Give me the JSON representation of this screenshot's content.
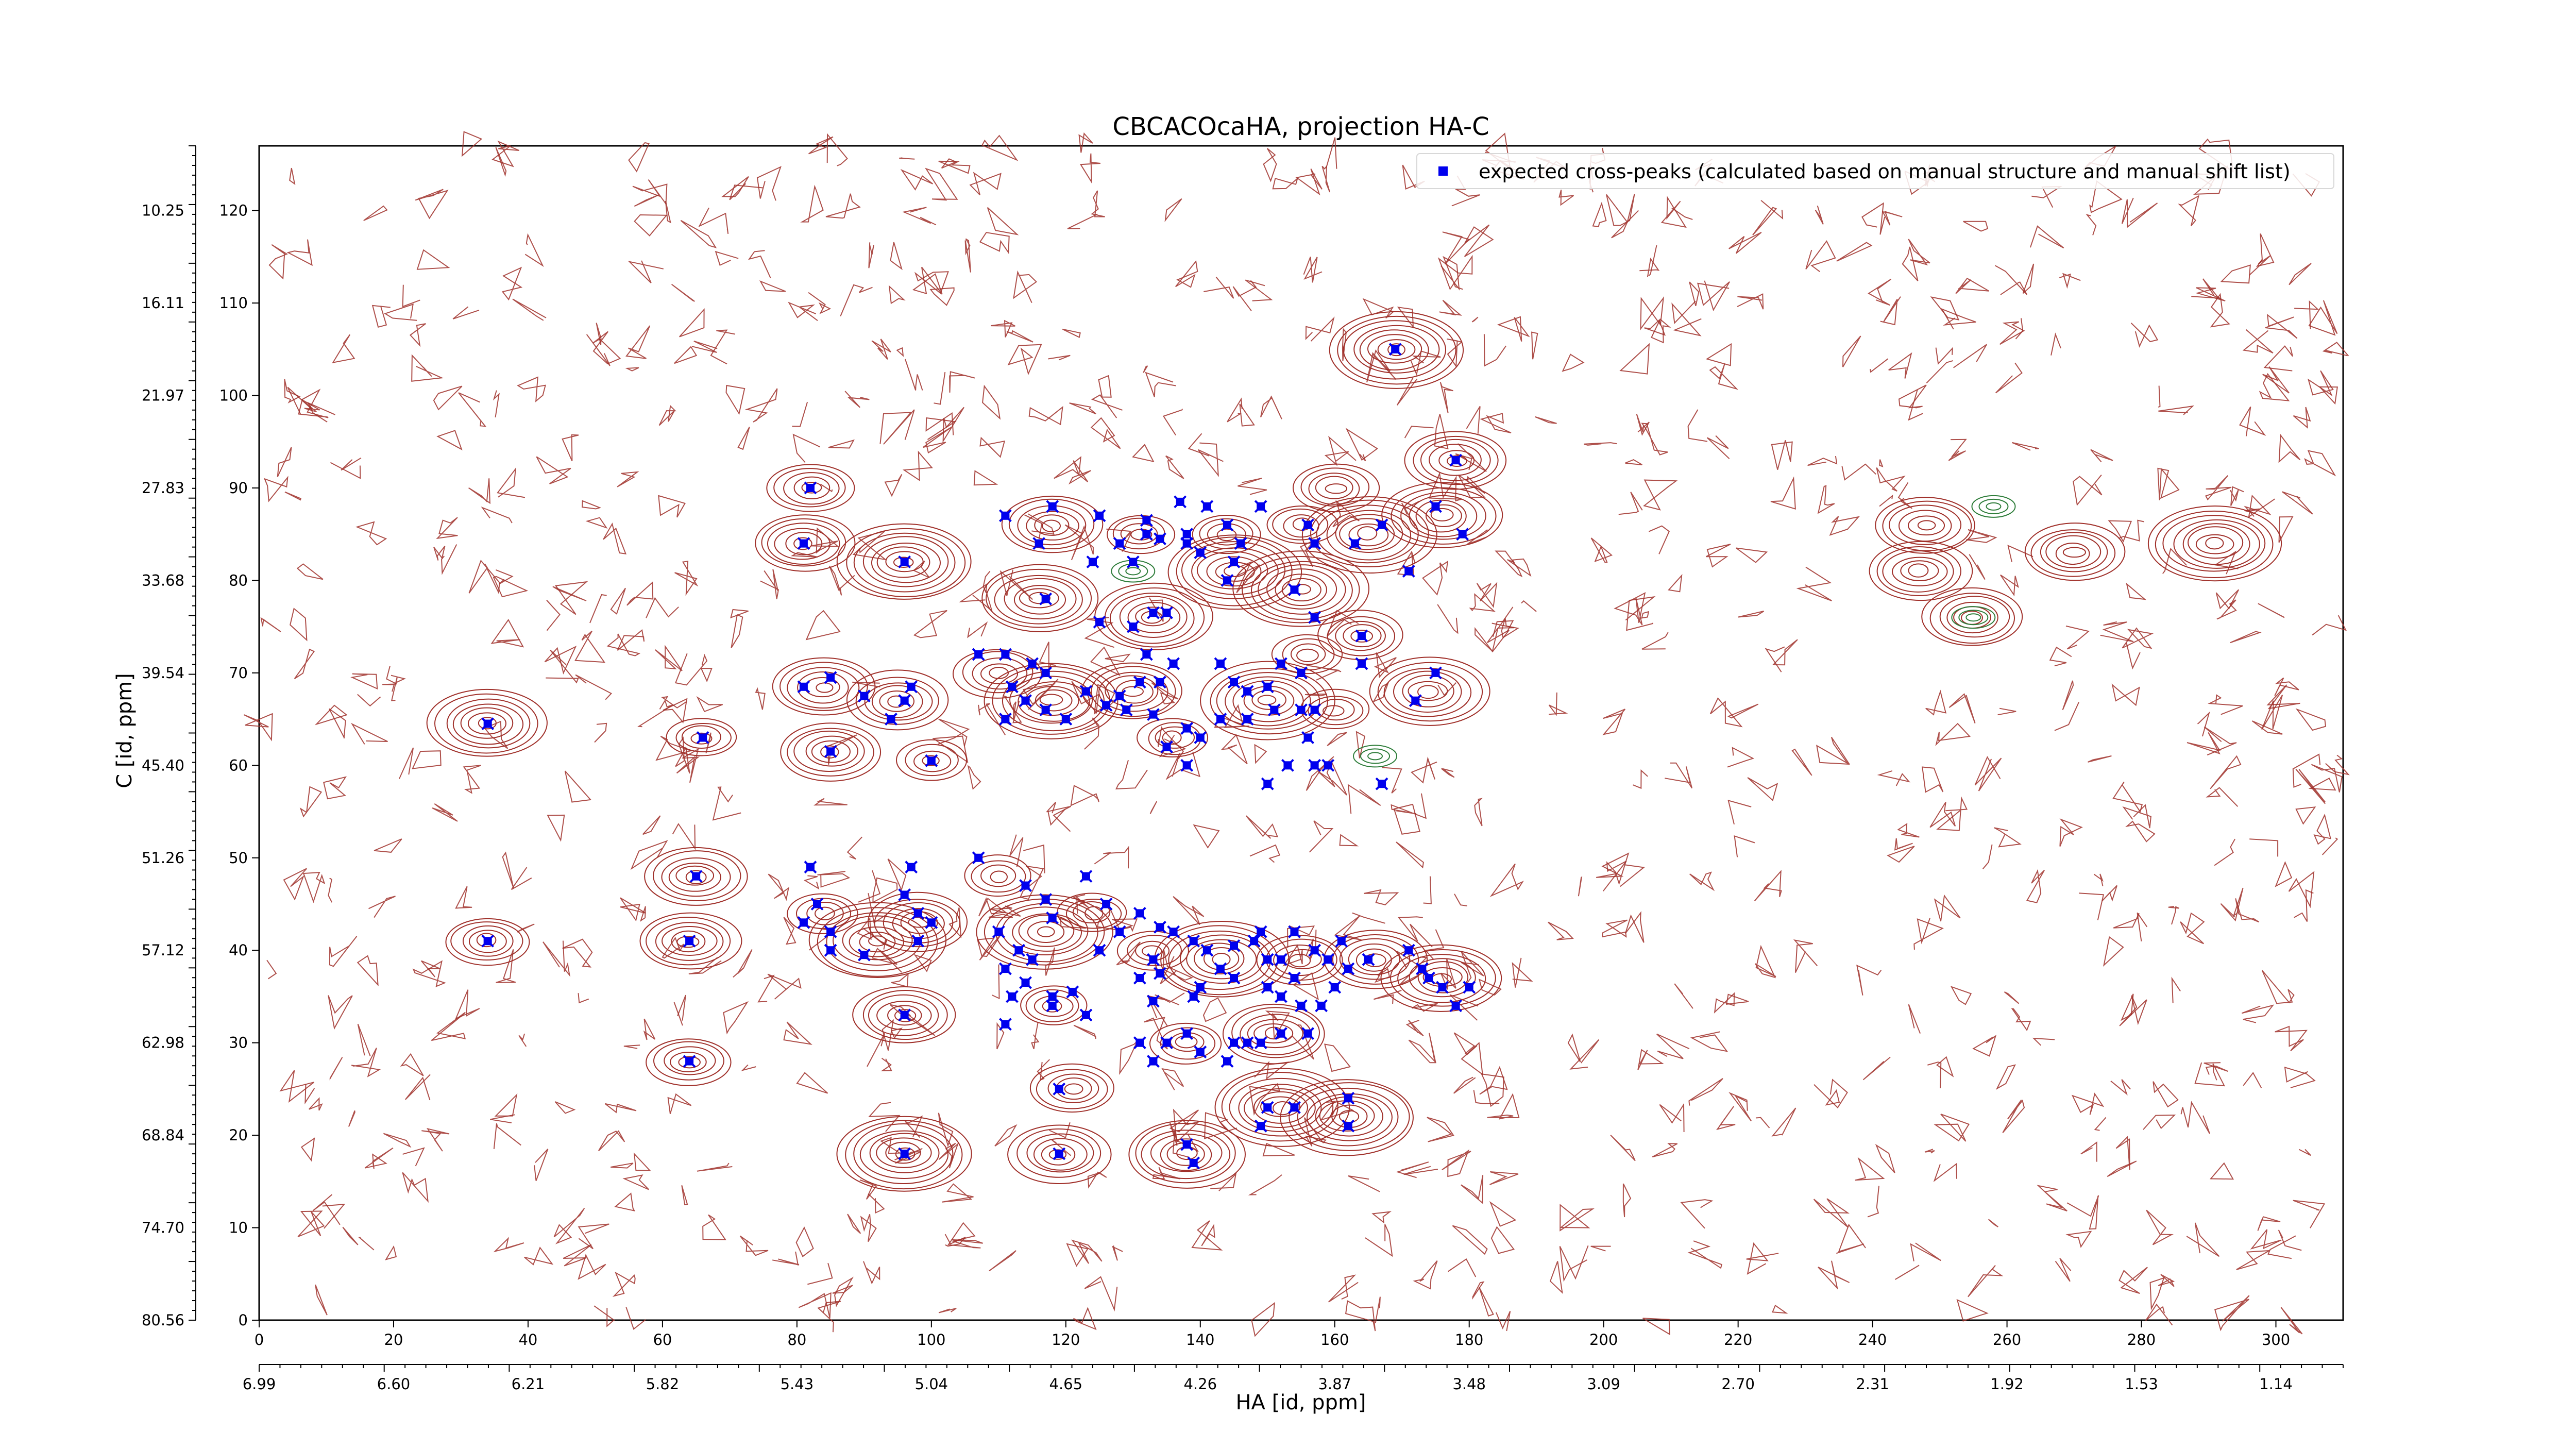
{
  "chart_data": {
    "type": "scatter",
    "title": "CBCACOcaHA, projection HA-C",
    "xlabel": "HA [id, ppm]",
    "ylabel": "C [id, ppm]",
    "xlim": [
      0,
      310
    ],
    "ylim": [
      0,
      127
    ],
    "x_ticks": [
      0,
      20,
      40,
      60,
      80,
      100,
      120,
      140,
      160,
      180,
      200,
      220,
      240,
      260,
      280,
      300
    ],
    "y_ticks": [
      0,
      10,
      20,
      30,
      40,
      50,
      60,
      70,
      80,
      90,
      100,
      110,
      120
    ],
    "x_ppm_tick_labels": [
      "6.99",
      "6.60",
      "6.21",
      "5.82",
      "5.43",
      "5.04",
      "4.65",
      "4.26",
      "3.87",
      "3.48",
      "3.09",
      "2.70",
      "2.31",
      "1.92",
      "1.53",
      "1.14"
    ],
    "y_ppm_tick_labels": [
      "80.56",
      "74.70",
      "68.84",
      "62.98",
      "57.12",
      "51.26",
      "45.40",
      "39.54",
      "33.68",
      "27.83",
      "21.97",
      "16.11",
      "10.25"
    ],
    "legend": {
      "position": "top-right",
      "entries": [
        "expected cross-peaks (calculated based on manual structure and manual shift list)"
      ]
    },
    "colors": {
      "markers": "#0000ee",
      "contours_positive": "#a0302a",
      "contours_negative": "#2e7d3a"
    },
    "series": [
      {
        "name": "expected cross-peaks (calculated based on manual structure and manual shift list)",
        "points": [
          [
            34,
            64.5
          ],
          [
            66,
            63
          ],
          [
            85,
            61.5
          ],
          [
            100,
            60.5
          ],
          [
            82,
            90
          ],
          [
            81,
            84
          ],
          [
            96,
            82
          ],
          [
            65,
            48
          ],
          [
            64,
            41
          ],
          [
            64,
            28
          ],
          [
            34,
            41
          ],
          [
            96,
            33
          ],
          [
            96,
            18
          ],
          [
            81,
            68.5
          ],
          [
            85,
            69.5
          ],
          [
            90,
            67.5
          ],
          [
            97,
            68.5
          ],
          [
            96,
            67
          ],
          [
            94,
            65
          ],
          [
            82,
            49
          ],
          [
            83,
            45
          ],
          [
            81,
            43
          ],
          [
            85,
            42
          ],
          [
            85,
            40
          ],
          [
            90,
            39.5
          ],
          [
            97,
            49
          ],
          [
            96,
            46
          ],
          [
            98,
            44
          ],
          [
            98,
            41
          ],
          [
            100,
            43
          ],
          [
            107,
            50
          ],
          [
            110,
            42
          ],
          [
            111,
            38
          ],
          [
            111,
            32
          ],
          [
            107,
            72
          ],
          [
            111,
            72
          ],
          [
            115,
            71
          ],
          [
            117,
            70
          ],
          [
            112,
            68.5
          ],
          [
            114,
            67
          ],
          [
            117,
            66
          ],
          [
            111,
            65
          ],
          [
            120,
            65
          ],
          [
            123,
            68
          ],
          [
            126,
            66.5
          ],
          [
            129,
            66
          ],
          [
            128,
            67.5
          ],
          [
            131,
            69
          ],
          [
            134,
            69
          ],
          [
            133,
            65.5
          ],
          [
            135,
            62
          ],
          [
            138,
            64
          ],
          [
            136,
            71
          ],
          [
            132,
            72
          ],
          [
            111,
            87
          ],
          [
            118,
            88
          ],
          [
            116,
            84
          ],
          [
            117,
            78
          ],
          [
            125,
            87
          ],
          [
            124,
            82
          ],
          [
            132,
            86.5
          ],
          [
            132,
            85
          ],
          [
            128,
            84
          ],
          [
            130,
            82
          ],
          [
            134,
            84.5
          ],
          [
            133,
            76.5
          ],
          [
            135,
            76.5
          ],
          [
            137,
            88.5
          ],
          [
            141,
            88
          ],
          [
            138,
            85
          ],
          [
            138,
            84
          ],
          [
            140,
            83
          ],
          [
            144,
            86
          ],
          [
            146,
            84
          ],
          [
            145,
            82
          ],
          [
            144,
            80
          ],
          [
            149,
            88
          ],
          [
            156,
            86
          ],
          [
            157,
            84
          ],
          [
            154,
            79
          ],
          [
            157,
            76
          ],
          [
            164,
            74
          ],
          [
            163,
            84
          ],
          [
            167,
            86
          ],
          [
            171,
            81
          ],
          [
            175,
            88
          ],
          [
            179,
            85
          ],
          [
            178,
            93
          ],
          [
            169,
            105
          ],
          [
            125,
            75.5
          ],
          [
            130,
            75
          ],
          [
            143,
            71
          ],
          [
            145,
            69
          ],
          [
            147,
            68
          ],
          [
            150,
            68.5
          ],
          [
            151,
            66
          ],
          [
            155,
            66
          ],
          [
            157,
            66
          ],
          [
            156,
            63
          ],
          [
            157,
            60
          ],
          [
            159,
            60
          ],
          [
            167,
            58
          ],
          [
            150,
            58
          ],
          [
            153,
            60
          ],
          [
            147,
            65
          ],
          [
            143,
            65
          ],
          [
            140,
            63
          ],
          [
            138,
            60
          ],
          [
            152,
            71
          ],
          [
            155,
            70
          ],
          [
            155,
            70
          ],
          [
            164,
            71
          ],
          [
            175,
            70
          ],
          [
            172,
            67
          ],
          [
            114,
            47
          ],
          [
            117,
            45.5
          ],
          [
            118,
            43.5
          ],
          [
            123,
            48
          ],
          [
            126,
            45
          ],
          [
            128,
            42
          ],
          [
            125,
            40
          ],
          [
            131,
            44
          ],
          [
            134,
            42.5
          ],
          [
            133,
            39
          ],
          [
            131,
            37
          ],
          [
            113,
            40
          ],
          [
            115,
            39
          ],
          [
            114,
            36.5
          ],
          [
            112,
            35
          ],
          [
            118,
            35
          ],
          [
            121,
            35.5
          ],
          [
            118,
            34
          ],
          [
            123,
            33
          ],
          [
            136,
            42
          ],
          [
            139,
            41
          ],
          [
            141,
            40
          ],
          [
            143,
            38
          ],
          [
            145,
            37
          ],
          [
            140,
            36
          ],
          [
            139,
            35
          ],
          [
            134,
            37.5
          ],
          [
            133,
            34.5
          ],
          [
            131,
            30
          ],
          [
            135,
            30
          ],
          [
            133,
            28
          ],
          [
            145,
            40.5
          ],
          [
            148,
            41
          ],
          [
            150,
            39
          ],
          [
            152,
            39
          ],
          [
            154,
            37
          ],
          [
            150,
            36
          ],
          [
            152,
            35
          ],
          [
            155,
            34
          ],
          [
            158,
            34
          ],
          [
            160,
            36
          ],
          [
            149,
            42
          ],
          [
            154,
            42
          ],
          [
            157,
            40
          ],
          [
            159,
            39
          ],
          [
            161,
            41
          ],
          [
            162,
            38
          ],
          [
            165,
            39
          ],
          [
            171,
            40
          ],
          [
            173,
            38
          ],
          [
            174,
            37
          ],
          [
            176,
            36
          ],
          [
            178,
            34
          ],
          [
            180,
            36
          ],
          [
            145,
            30
          ],
          [
            147,
            30
          ],
          [
            152,
            31
          ],
          [
            156,
            31
          ],
          [
            149,
            30
          ],
          [
            144,
            28
          ],
          [
            140,
            29
          ],
          [
            138,
            31
          ],
          [
            119,
            25
          ],
          [
            119,
            18
          ],
          [
            138,
            19
          ],
          [
            139,
            17
          ],
          [
            150,
            23
          ],
          [
            149,
            21
          ],
          [
            154,
            23
          ],
          [
            162,
            24
          ],
          [
            162,
            21
          ]
        ]
      }
    ],
    "contour_peaks": [
      [
        34,
        64.5
      ],
      [
        66,
        63
      ],
      [
        85,
        61.5
      ],
      [
        100,
        60.5
      ],
      [
        82,
        90
      ],
      [
        81,
        84
      ],
      [
        96,
        82
      ],
      [
        65,
        48
      ],
      [
        64,
        41
      ],
      [
        64,
        28
      ],
      [
        34,
        41
      ],
      [
        96,
        33
      ],
      [
        96,
        18
      ],
      [
        169,
        105
      ],
      [
        178,
        93
      ],
      [
        247,
        81
      ],
      [
        255,
        76
      ],
      [
        270,
        83
      ],
      [
        291,
        84
      ],
      [
        248,
        86
      ],
      [
        84,
        68.5
      ],
      [
        95,
        67
      ],
      [
        110,
        70
      ],
      [
        118,
        67
      ],
      [
        130,
        68
      ],
      [
        136,
        63
      ],
      [
        150,
        67
      ],
      [
        160,
        66
      ],
      [
        156,
        72
      ],
      [
        164,
        74
      ],
      [
        174,
        68
      ],
      [
        118,
        86
      ],
      [
        131,
        85
      ],
      [
        144,
        85
      ],
      [
        155,
        86
      ],
      [
        165,
        85
      ],
      [
        176,
        87
      ],
      [
        116,
        78
      ],
      [
        133,
        76
      ],
      [
        145,
        81
      ],
      [
        155,
        79
      ],
      [
        160,
        90
      ],
      [
        84,
        44
      ],
      [
        92,
        41
      ],
      [
        98,
        43
      ],
      [
        117,
        42
      ],
      [
        124,
        44
      ],
      [
        133,
        40
      ],
      [
        143,
        39
      ],
      [
        155,
        39
      ],
      [
        166,
        39
      ],
      [
        176,
        37
      ],
      [
        138,
        30
      ],
      [
        151,
        31
      ],
      [
        118,
        34
      ],
      [
        121,
        25
      ],
      [
        119,
        18
      ],
      [
        138,
        18
      ],
      [
        152,
        23
      ],
      [
        162,
        22
      ],
      [
        110,
        48
      ]
    ]
  }
}
